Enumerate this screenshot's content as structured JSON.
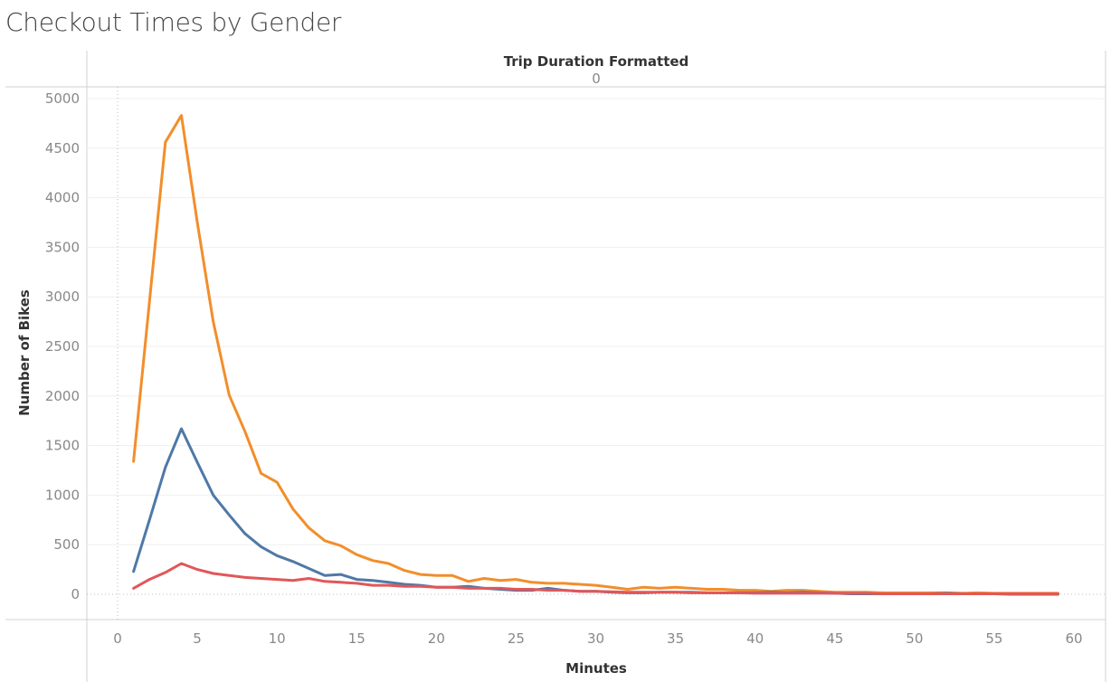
{
  "chart_data": {
    "type": "line",
    "title": "Checkout Times by Gender",
    "column_header": "Trip Duration Formatted",
    "column_value": "0",
    "xlabel": "Minutes",
    "ylabel": "Number of Bikes",
    "xlim": [
      0,
      60
    ],
    "ylim": [
      0,
      5000
    ],
    "x_ticks": [
      0,
      5,
      10,
      15,
      20,
      25,
      30,
      35,
      40,
      45,
      50,
      55,
      60
    ],
    "y_ticks": [
      0,
      500,
      1000,
      1500,
      2000,
      2500,
      3000,
      3500,
      4000,
      4500,
      5000
    ],
    "grid": true,
    "x": [
      1,
      2,
      3,
      4,
      5,
      6,
      7,
      8,
      9,
      10,
      11,
      12,
      13,
      14,
      15,
      16,
      17,
      18,
      19,
      20,
      21,
      22,
      23,
      24,
      25,
      26,
      27,
      28,
      29,
      30,
      31,
      32,
      33,
      34,
      35,
      36,
      37,
      38,
      39,
      40,
      41,
      42,
      43,
      44,
      45,
      46,
      47,
      48,
      49,
      50,
      51,
      52,
      53,
      54,
      55,
      56,
      57,
      58,
      59
    ],
    "series": [
      {
        "color": "#F28E2B",
        "values": [
          1340,
          2950,
          4560,
          4830,
          3750,
          2750,
          2010,
          1640,
          1220,
          1130,
          860,
          670,
          540,
          490,
          400,
          340,
          310,
          240,
          200,
          190,
          190,
          130,
          160,
          140,
          150,
          120,
          110,
          110,
          100,
          90,
          70,
          50,
          70,
          60,
          70,
          60,
          50,
          50,
          40,
          40,
          30,
          40,
          40,
          30,
          20,
          20,
          20,
          15,
          15,
          15,
          15,
          15,
          10,
          15,
          10,
          10,
          10,
          10,
          10
        ]
      },
      {
        "color": "#4E79A7",
        "values": [
          230,
          750,
          1280,
          1670,
          1330,
          1000,
          800,
          610,
          480,
          390,
          330,
          260,
          190,
          200,
          150,
          140,
          120,
          100,
          90,
          70,
          70,
          80,
          60,
          50,
          40,
          40,
          60,
          40,
          30,
          30,
          20,
          15,
          15,
          20,
          20,
          20,
          15,
          15,
          15,
          15,
          20,
          15,
          20,
          15,
          10,
          5,
          5,
          5,
          5,
          5,
          5,
          10,
          5,
          5,
          5,
          0,
          0,
          0,
          0
        ]
      },
      {
        "color": "#E15759",
        "values": [
          60,
          150,
          220,
          310,
          250,
          210,
          190,
          170,
          160,
          150,
          140,
          160,
          130,
          120,
          110,
          90,
          90,
          80,
          80,
          70,
          70,
          60,
          60,
          60,
          50,
          50,
          40,
          40,
          30,
          30,
          25,
          20,
          20,
          20,
          20,
          15,
          15,
          15,
          15,
          10,
          10,
          10,
          10,
          10,
          10,
          10,
          10,
          5,
          5,
          5,
          5,
          5,
          5,
          5,
          5,
          5,
          5,
          5,
          5
        ]
      }
    ]
  }
}
